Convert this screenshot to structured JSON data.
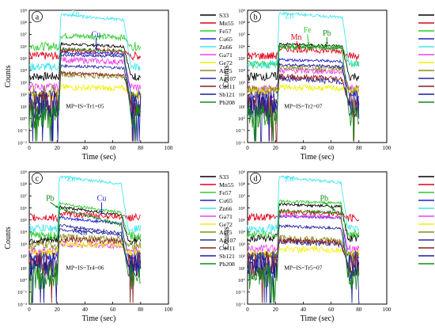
{
  "legend_entries": [
    "S33",
    "Mn55",
    "Fe57",
    "Cu65",
    "Zn66",
    "Ga71",
    "Ge72",
    "As75",
    "Ag107",
    "Cd111",
    "Sb121",
    "Pb208"
  ],
  "series_colors": {
    "S33": "#000000",
    "Mn55": "#e3001b",
    "Fe57": "#2ecc2e",
    "Cu65": "#1f1fd6",
    "Zn66": "#3ee6f0",
    "Ga71": "#ee40ee",
    "Ge72": "#f4f000",
    "As75": "#8c8c1c",
    "Ag107": "#2a2aa0",
    "Cd111": "#8c1f1f",
    "Sb121": "#1a1aa0",
    "Pb208": "#158a15"
  },
  "chart_data": [
    {
      "type": "line",
      "panel": "a",
      "sample": "MP=IS=Tr1=05",
      "xlabel": "Time (sec)",
      "ylabel": "Counts",
      "xlim": [
        0,
        100
      ],
      "xticks": [
        0,
        20,
        40,
        60,
        80,
        100
      ],
      "ylim_log10": [
        -2,
        9
      ],
      "ytick_labels": [
        "10⁻²",
        "10⁻¹",
        "10⁰",
        "10¹",
        "10²",
        "10³",
        "10⁴",
        "10⁵",
        "10⁶",
        "10⁷",
        "10⁸",
        "10⁹"
      ],
      "signal_window_sec": [
        22,
        68
      ],
      "annotations": [
        {
          "text": "Zn",
          "x": 33,
          "y_log10": 8.55,
          "color": "#3ee6f0"
        },
        {
          "text": "Cu",
          "x": 48,
          "y_log10": 6.8,
          "color": "#1f1fd6",
          "arrow_to": [
            48,
            5.65
          ]
        }
      ],
      "series": [
        {
          "name": "S33",
          "background_log10": 3.5,
          "signal_log10": [
            6.2,
            6.0
          ]
        },
        {
          "name": "Mn55",
          "background_log10": 5.2,
          "signal_log10": [
            5.7,
            5.55
          ]
        },
        {
          "name": "Fe57",
          "background_log10": 6.0,
          "signal_log10": [
            6.9,
            6.75
          ]
        },
        {
          "name": "Cu65",
          "background_log10": 2.0,
          "signal_log10": [
            5.5,
            5.35
          ]
        },
        {
          "name": "Zn66",
          "background_log10": 4.3,
          "signal_log10": [
            8.65,
            8.2
          ]
        },
        {
          "name": "Ga71",
          "background_log10": 2.6,
          "signal_log10": [
            4.9,
            4.7
          ]
        },
        {
          "name": "Ge72",
          "background_log10": 2.0,
          "signal_log10": [
            2.6,
            2.5
          ]
        },
        {
          "name": "As75",
          "background_log10": 1.7,
          "signal_log10": [
            3.7,
            3.5
          ]
        },
        {
          "name": "Ag107",
          "background_log10": 1.2,
          "signal_log10": [
            4.4,
            4.2
          ]
        },
        {
          "name": "Cd111",
          "background_log10": 1.2,
          "signal_log10": [
            3.8,
            3.6
          ]
        },
        {
          "name": "Sb121",
          "background_log10": 1.0,
          "signal_log10": [
            5.3,
            5.15
          ]
        },
        {
          "name": "Pb208",
          "background_log10": 0.2,
          "signal_log10": [
            5.75,
            5.6
          ]
        }
      ]
    },
    {
      "type": "line",
      "panel": "b",
      "sample": "MP=IS=Tr2=07",
      "xlabel": "Time (sec)",
      "ylabel": "Counts",
      "xlim": [
        0,
        100
      ],
      "xticks": [
        0,
        20,
        40,
        60,
        80,
        100
      ],
      "ylim_log10": [
        -2,
        9
      ],
      "ytick_labels": [
        "10⁻²",
        "10⁻¹",
        "10⁰",
        "10¹",
        "10²",
        "10³",
        "10⁴",
        "10⁵",
        "10⁶",
        "10⁷",
        "10⁸",
        "10⁹"
      ],
      "signal_window_sec": [
        22,
        68
      ],
      "annotations": [
        {
          "text": "Zn",
          "x": 30,
          "y_log10": 8.3,
          "color": "#3ee6f0"
        },
        {
          "text": "Mn",
          "x": 35,
          "y_log10": 6.55,
          "color": "#e3001b",
          "arrow_to": [
            38,
            5.75
          ]
        },
        {
          "text": "Fe",
          "x": 43,
          "y_log10": 7.15,
          "color": "#2ecc2e",
          "arrow_to": [
            44,
            6.1
          ]
        },
        {
          "text": "Pb",
          "x": 57,
          "y_log10": 6.9,
          "color": "#158a15",
          "arrow_to": [
            57,
            6.1
          ]
        }
      ],
      "series": [
        {
          "name": "S33",
          "background_log10": 3.5,
          "signal_log10": [
            6.2,
            6.0
          ]
        },
        {
          "name": "Mn55",
          "background_log10": 5.2,
          "signal_log10": [
            5.8,
            5.6
          ]
        },
        {
          "name": "Fe57",
          "background_log10": 4.5,
          "signal_log10": [
            6.0,
            5.9
          ]
        },
        {
          "name": "Cu65",
          "background_log10": 2.0,
          "signal_log10": [
            4.9,
            4.75
          ]
        },
        {
          "name": "Zn66",
          "background_log10": 4.5,
          "signal_log10": [
            8.8,
            8.4
          ]
        },
        {
          "name": "Ga71",
          "background_log10": 2.5,
          "signal_log10": [
            4.0,
            3.9
          ]
        },
        {
          "name": "Ge72",
          "background_log10": 2.3,
          "signal_log10": [
            2.6,
            2.5
          ]
        },
        {
          "name": "As75",
          "background_log10": 2.4,
          "signal_log10": [
            4.3,
            4.15
          ]
        },
        {
          "name": "Ag107",
          "background_log10": 1.2,
          "signal_log10": [
            3.3,
            3.1
          ]
        },
        {
          "name": "Cd111",
          "background_log10": 1.2,
          "signal_log10": [
            3.5,
            3.3
          ]
        },
        {
          "name": "Sb121",
          "background_log10": 1.0,
          "signal_log10": [
            4.5,
            4.3
          ]
        },
        {
          "name": "Pb208",
          "background_log10": 0.3,
          "signal_log10": [
            6.0,
            5.85
          ]
        }
      ]
    },
    {
      "type": "line",
      "panel": "c",
      "sample": "MP=IS=Tr4=06",
      "xlabel": "Time (sec)",
      "ylabel": "Counts",
      "xlim": [
        0,
        100
      ],
      "xticks": [
        0,
        20,
        40,
        60,
        80,
        100
      ],
      "ylim_log10": [
        -2,
        9
      ],
      "ytick_labels": [
        "10⁻²",
        "10⁻¹",
        "10⁰",
        "10¹",
        "10²",
        "10³",
        "10⁴",
        "10⁵",
        "10⁶",
        "10⁷",
        "10⁸",
        "10⁹"
      ],
      "signal_window_sec": [
        21,
        66
      ],
      "annotations": [
        {
          "text": "Zn",
          "x": 30,
          "y_log10": 8.2,
          "color": "#3ee6f0"
        },
        {
          "text": "Pb",
          "x": 15,
          "y_log10": 6.6,
          "color": "#158a15",
          "arrow_to": [
            21,
            6.0
          ]
        },
        {
          "text": "Cu",
          "x": 52,
          "y_log10": 6.6,
          "color": "#1f1fd6",
          "arrow_to": [
            52,
            5.5
          ]
        },
        {
          "text": "Ag",
          "x": 38,
          "y_log10": 3.9,
          "color": "#2a2aa0",
          "arrow_to": [
            32,
            4.3
          ]
        }
      ],
      "series": [
        {
          "name": "S33",
          "background_log10": 3.3,
          "signal_log10": [
            6.1,
            5.4
          ]
        },
        {
          "name": "Mn55",
          "background_log10": 5.2,
          "signal_log10": [
            5.5,
            5.3
          ]
        },
        {
          "name": "Fe57",
          "background_log10": 3.7,
          "signal_log10": [
            6.4,
            5.6
          ]
        },
        {
          "name": "Cu65",
          "background_log10": 2.0,
          "signal_log10": [
            5.2,
            4.7
          ]
        },
        {
          "name": "Zn66",
          "background_log10": 4.3,
          "signal_log10": [
            8.6,
            8.0
          ]
        },
        {
          "name": "Ga71",
          "background_log10": 2.4,
          "signal_log10": [
            3.0,
            2.8
          ]
        },
        {
          "name": "Ge72",
          "background_log10": 2.3,
          "signal_log10": [
            3.0,
            2.9
          ]
        },
        {
          "name": "As75",
          "background_log10": 2.9,
          "signal_log10": [
            3.6,
            3.4
          ]
        },
        {
          "name": "Ag107",
          "background_log10": 1.3,
          "signal_log10": [
            4.6,
            3.9
          ]
        },
        {
          "name": "Cd111",
          "background_log10": 1.3,
          "signal_log10": [
            3.4,
            3.2
          ]
        },
        {
          "name": "Sb121",
          "background_log10": 1.0,
          "signal_log10": [
            4.2,
            3.8
          ]
        },
        {
          "name": "Pb208",
          "background_log10": 0.3,
          "signal_log10": [
            6.0,
            4.6
          ]
        }
      ]
    },
    {
      "type": "line",
      "panel": "d",
      "sample": "MP=IS=Tr5=07",
      "xlabel": "Time (sec)",
      "ylabel": "Counts",
      "xlim": [
        0,
        100
      ],
      "xticks": [
        0,
        20,
        40,
        60,
        80,
        100
      ],
      "ylim_log10": [
        -2,
        9
      ],
      "ytick_labels": [
        "10⁻²",
        "10⁻¹",
        "10⁰",
        "10¹",
        "10²",
        "10³",
        "10⁴",
        "10⁵",
        "10⁶",
        "10⁷",
        "10⁸",
        "10⁹"
      ],
      "signal_window_sec": [
        22,
        67
      ],
      "annotations": [
        {
          "text": "Zn",
          "x": 30,
          "y_log10": 8.2,
          "color": "#3ee6f0"
        },
        {
          "text": "Pb",
          "x": 55,
          "y_log10": 6.6,
          "color": "#158a15",
          "arrow_to": [
            63,
            5.75
          ]
        }
      ],
      "series": [
        {
          "name": "S33",
          "background_log10": 3.5,
          "signal_log10": [
            6.3,
            6.1
          ]
        },
        {
          "name": "Mn55",
          "background_log10": 5.2,
          "signal_log10": [
            5.7,
            5.5
          ]
        },
        {
          "name": "Fe57",
          "background_log10": 3.8,
          "signal_log10": [
            6.55,
            6.4
          ]
        },
        {
          "name": "Cu65",
          "background_log10": 2.0,
          "signal_log10": [
            5.3,
            5.2
          ]
        },
        {
          "name": "Zn66",
          "background_log10": 4.3,
          "signal_log10": [
            8.6,
            8.1
          ]
        },
        {
          "name": "Ga71",
          "background_log10": 2.6,
          "signal_log10": [
            5.4,
            5.2
          ]
        },
        {
          "name": "Ge72",
          "background_log10": 2.2,
          "signal_log10": [
            2.6,
            2.5
          ]
        },
        {
          "name": "As75",
          "background_log10": 2.0,
          "signal_log10": [
            3.5,
            3.3
          ]
        },
        {
          "name": "Ag107",
          "background_log10": 1.3,
          "signal_log10": [
            3.2,
            3.0
          ]
        },
        {
          "name": "Cd111",
          "background_log10": 1.3,
          "signal_log10": [
            3.3,
            3.1
          ]
        },
        {
          "name": "Sb121",
          "background_log10": 1.0,
          "signal_log10": [
            4.5,
            4.3
          ]
        },
        {
          "name": "Pb208",
          "background_log10": 0.3,
          "signal_log10": [
            5.75,
            5.6
          ]
        }
      ]
    }
  ]
}
